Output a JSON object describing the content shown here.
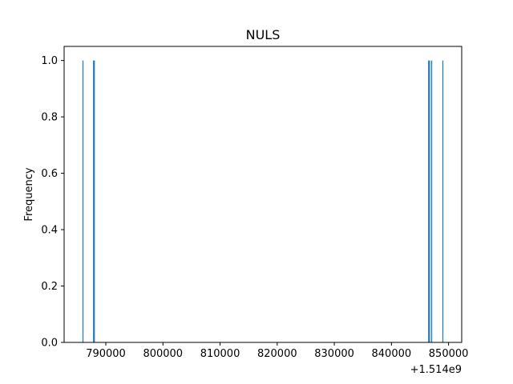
{
  "chart_data": {
    "type": "bar",
    "title": "NULS",
    "xlabel": "",
    "ylabel": "Frequency",
    "x_offset_label": "+1.514e9",
    "bar_color": "#1f77b4",
    "xlim": [
      782700,
      852300
    ],
    "ylim": [
      0,
      1.05
    ],
    "x_ticks": [
      790000,
      800000,
      810000,
      820000,
      830000,
      840000,
      850000
    ],
    "x_tick_labels": [
      "790000",
      "800000",
      "810000",
      "820000",
      "830000",
      "840000",
      "850000"
    ],
    "y_ticks": [
      0.0,
      0.2,
      0.4,
      0.6,
      0.8,
      1.0
    ],
    "y_tick_labels": [
      "0.0",
      "0.2",
      "0.4",
      "0.6",
      "0.8",
      "1.0"
    ],
    "grid": false,
    "bars": [
      {
        "x": 786000,
        "value": 1
      },
      {
        "x": 787850,
        "value": 1
      },
      {
        "x": 788000,
        "value": 1
      },
      {
        "x": 846500,
        "value": 1
      },
      {
        "x": 846700,
        "value": 1
      },
      {
        "x": 847050,
        "value": 1
      },
      {
        "x": 849000,
        "value": 1
      }
    ]
  }
}
